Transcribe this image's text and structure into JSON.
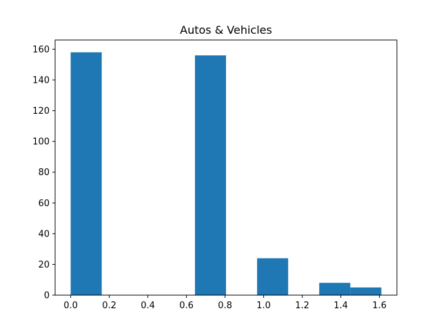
{
  "chart_data": {
    "type": "bar",
    "title": "Autos & Vehicles",
    "xlabel": "",
    "ylabel": "",
    "bin_edges": [
      0.0,
      0.161,
      0.322,
      0.483,
      0.644,
      0.805,
      0.966,
      1.127,
      1.288,
      1.449,
      1.61
    ],
    "values": [
      158,
      0,
      0,
      0,
      156,
      0,
      24,
      0,
      8,
      5
    ],
    "xlim": [
      -0.0805,
      1.6905
    ],
    "ylim": [
      0,
      166
    ],
    "xticks": [
      0.0,
      0.2,
      0.4,
      0.6,
      0.8,
      1.0,
      1.2,
      1.4,
      1.6
    ],
    "xtick_labels": [
      "0.0",
      "0.2",
      "0.4",
      "0.6",
      "0.8",
      "1.0",
      "1.2",
      "1.4",
      "1.6"
    ],
    "yticks": [
      0,
      20,
      40,
      60,
      80,
      100,
      120,
      140,
      160
    ],
    "ytick_labels": [
      "0",
      "20",
      "40",
      "60",
      "80",
      "100",
      "120",
      "140",
      "160"
    ],
    "bar_color": "#1f77b4",
    "grid": false,
    "legend": "none"
  }
}
